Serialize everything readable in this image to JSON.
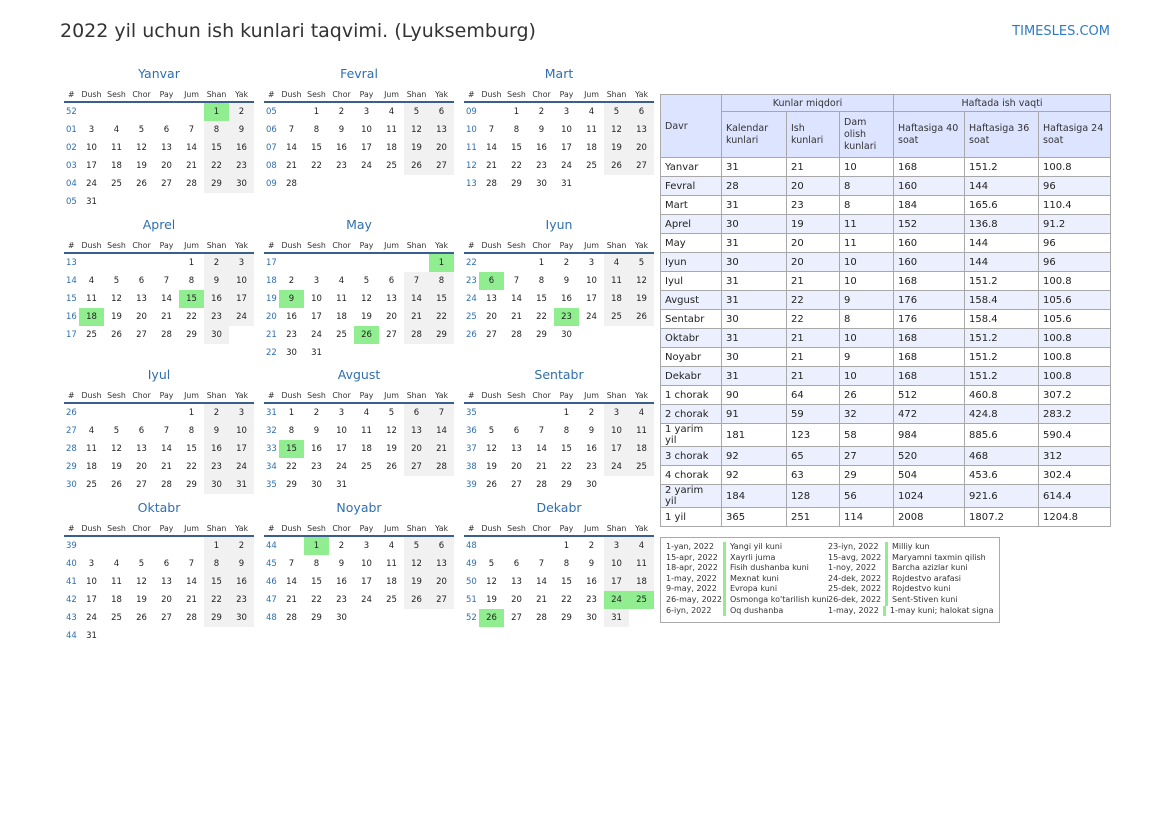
{
  "header": {
    "title": "2022 yil uchun ish kunlari taqvimi. (Lyuksemburg)",
    "site": "TIMESLES.COM"
  },
  "weekday_headers": [
    "#",
    "Dush",
    "Sesh",
    "Chor",
    "Pay",
    "Jum",
    "Shan",
    "Yak"
  ],
  "months": [
    {
      "name": "Yanvar",
      "rows": [
        [
          "52",
          "",
          "",
          "",
          "",
          "",
          "1",
          "2"
        ],
        [
          "01",
          "3",
          "4",
          "5",
          "6",
          "7",
          "8",
          "9"
        ],
        [
          "02",
          "10",
          "11",
          "12",
          "13",
          "14",
          "15",
          "16"
        ],
        [
          "03",
          "17",
          "18",
          "19",
          "20",
          "21",
          "22",
          "23"
        ],
        [
          "04",
          "24",
          "25",
          "26",
          "27",
          "28",
          "29",
          "30"
        ],
        [
          "05",
          "31",
          "",
          "",
          "",
          "",
          "",
          ""
        ]
      ],
      "holidays": [
        "1"
      ]
    },
    {
      "name": "Fevral",
      "rows": [
        [
          "05",
          "",
          "1",
          "2",
          "3",
          "4",
          "5",
          "6"
        ],
        [
          "06",
          "7",
          "8",
          "9",
          "10",
          "11",
          "12",
          "13"
        ],
        [
          "07",
          "14",
          "15",
          "16",
          "17",
          "18",
          "19",
          "20"
        ],
        [
          "08",
          "21",
          "22",
          "23",
          "24",
          "25",
          "26",
          "27"
        ],
        [
          "09",
          "28",
          "",
          "",
          "",
          "",
          "",
          ""
        ]
      ],
      "holidays": []
    },
    {
      "name": "Mart",
      "rows": [
        [
          "09",
          "",
          "1",
          "2",
          "3",
          "4",
          "5",
          "6"
        ],
        [
          "10",
          "7",
          "8",
          "9",
          "10",
          "11",
          "12",
          "13"
        ],
        [
          "11",
          "14",
          "15",
          "16",
          "17",
          "18",
          "19",
          "20"
        ],
        [
          "12",
          "21",
          "22",
          "23",
          "24",
          "25",
          "26",
          "27"
        ],
        [
          "13",
          "28",
          "29",
          "30",
          "31",
          "",
          "",
          ""
        ]
      ],
      "holidays": []
    },
    {
      "name": "Aprel",
      "rows": [
        [
          "13",
          "",
          "",
          "",
          "",
          "1",
          "2",
          "3"
        ],
        [
          "14",
          "4",
          "5",
          "6",
          "7",
          "8",
          "9",
          "10"
        ],
        [
          "15",
          "11",
          "12",
          "13",
          "14",
          "15",
          "16",
          "17"
        ],
        [
          "16",
          "18",
          "19",
          "20",
          "21",
          "22",
          "23",
          "24"
        ],
        [
          "17",
          "25",
          "26",
          "27",
          "28",
          "29",
          "30",
          ""
        ]
      ],
      "holidays": [
        "15",
        "18"
      ]
    },
    {
      "name": "May",
      "rows": [
        [
          "17",
          "",
          "",
          "",
          "",
          "",
          "",
          "1"
        ],
        [
          "18",
          "2",
          "3",
          "4",
          "5",
          "6",
          "7",
          "8"
        ],
        [
          "19",
          "9",
          "10",
          "11",
          "12",
          "13",
          "14",
          "15"
        ],
        [
          "20",
          "16",
          "17",
          "18",
          "19",
          "20",
          "21",
          "22"
        ],
        [
          "21",
          "23",
          "24",
          "25",
          "26",
          "27",
          "28",
          "29"
        ],
        [
          "22",
          "30",
          "31",
          "",
          "",
          "",
          "",
          ""
        ]
      ],
      "holidays": [
        "1",
        "9",
        "26"
      ]
    },
    {
      "name": "Iyun",
      "rows": [
        [
          "22",
          "",
          "",
          "1",
          "2",
          "3",
          "4",
          "5"
        ],
        [
          "23",
          "6",
          "7",
          "8",
          "9",
          "10",
          "11",
          "12"
        ],
        [
          "24",
          "13",
          "14",
          "15",
          "16",
          "17",
          "18",
          "19"
        ],
        [
          "25",
          "20",
          "21",
          "22",
          "23",
          "24",
          "25",
          "26"
        ],
        [
          "26",
          "27",
          "28",
          "29",
          "30",
          "",
          "",
          ""
        ]
      ],
      "holidays": [
        "6",
        "23"
      ]
    },
    {
      "name": "Iyul",
      "rows": [
        [
          "26",
          "",
          "",
          "",
          "",
          "1",
          "2",
          "3"
        ],
        [
          "27",
          "4",
          "5",
          "6",
          "7",
          "8",
          "9",
          "10"
        ],
        [
          "28",
          "11",
          "12",
          "13",
          "14",
          "15",
          "16",
          "17"
        ],
        [
          "29",
          "18",
          "19",
          "20",
          "21",
          "22",
          "23",
          "24"
        ],
        [
          "30",
          "25",
          "26",
          "27",
          "28",
          "29",
          "30",
          "31"
        ]
      ],
      "holidays": []
    },
    {
      "name": "Avgust",
      "rows": [
        [
          "31",
          "1",
          "2",
          "3",
          "4",
          "5",
          "6",
          "7"
        ],
        [
          "32",
          "8",
          "9",
          "10",
          "11",
          "12",
          "13",
          "14"
        ],
        [
          "33",
          "15",
          "16",
          "17",
          "18",
          "19",
          "20",
          "21"
        ],
        [
          "34",
          "22",
          "23",
          "24",
          "25",
          "26",
          "27",
          "28"
        ],
        [
          "35",
          "29",
          "30",
          "31",
          "",
          "",
          "",
          ""
        ]
      ],
      "holidays": [
        "15"
      ]
    },
    {
      "name": "Sentabr",
      "rows": [
        [
          "35",
          "",
          "",
          "",
          "1",
          "2",
          "3",
          "4"
        ],
        [
          "36",
          "5",
          "6",
          "7",
          "8",
          "9",
          "10",
          "11"
        ],
        [
          "37",
          "12",
          "13",
          "14",
          "15",
          "16",
          "17",
          "18"
        ],
        [
          "38",
          "19",
          "20",
          "21",
          "22",
          "23",
          "24",
          "25"
        ],
        [
          "39",
          "26",
          "27",
          "28",
          "29",
          "30",
          "",
          ""
        ]
      ],
      "holidays": []
    },
    {
      "name": "Oktabr",
      "rows": [
        [
          "39",
          "",
          "",
          "",
          "",
          "",
          "1",
          "2"
        ],
        [
          "40",
          "3",
          "4",
          "5",
          "6",
          "7",
          "8",
          "9"
        ],
        [
          "41",
          "10",
          "11",
          "12",
          "13",
          "14",
          "15",
          "16"
        ],
        [
          "42",
          "17",
          "18",
          "19",
          "20",
          "21",
          "22",
          "23"
        ],
        [
          "43",
          "24",
          "25",
          "26",
          "27",
          "28",
          "29",
          "30"
        ],
        [
          "44",
          "31",
          "",
          "",
          "",
          "",
          "",
          ""
        ]
      ],
      "holidays": []
    },
    {
      "name": "Noyabr",
      "rows": [
        [
          "44",
          "",
          "1",
          "2",
          "3",
          "4",
          "5",
          "6"
        ],
        [
          "45",
          "7",
          "8",
          "9",
          "10",
          "11",
          "12",
          "13"
        ],
        [
          "46",
          "14",
          "15",
          "16",
          "17",
          "18",
          "19",
          "20"
        ],
        [
          "47",
          "21",
          "22",
          "23",
          "24",
          "25",
          "26",
          "27"
        ],
        [
          "48",
          "28",
          "29",
          "30",
          "",
          "",
          "",
          ""
        ]
      ],
      "holidays": [
        "1"
      ]
    },
    {
      "name": "Dekabr",
      "rows": [
        [
          "48",
          "",
          "",
          "",
          "1",
          "2",
          "3",
          "4"
        ],
        [
          "49",
          "5",
          "6",
          "7",
          "8",
          "9",
          "10",
          "11"
        ],
        [
          "50",
          "12",
          "13",
          "14",
          "15",
          "16",
          "17",
          "18"
        ],
        [
          "51",
          "19",
          "20",
          "21",
          "22",
          "23",
          "24",
          "25"
        ],
        [
          "52",
          "26",
          "27",
          "28",
          "29",
          "30",
          "31",
          ""
        ]
      ],
      "holidays": [
        "24",
        "25",
        "26"
      ]
    }
  ],
  "stats": {
    "group_headers": {
      "period": "Davr",
      "days": "Kunlar miqdori",
      "hours": "Haftada ish vaqti"
    },
    "sub_headers": [
      "Kalendar kunlari",
      "Ish kunlari",
      "Dam olish kunlari",
      "Haftasiga 40 soat",
      "Haftasiga 36 soat",
      "Haftasiga 24 soat"
    ],
    "rows": [
      [
        "Yanvar",
        "31",
        "21",
        "10",
        "168",
        "151.2",
        "100.8"
      ],
      [
        "Fevral",
        "28",
        "20",
        "8",
        "160",
        "144",
        "96"
      ],
      [
        "Mart",
        "31",
        "23",
        "8",
        "184",
        "165.6",
        "110.4"
      ],
      [
        "Aprel",
        "30",
        "19",
        "11",
        "152",
        "136.8",
        "91.2"
      ],
      [
        "May",
        "31",
        "20",
        "11",
        "160",
        "144",
        "96"
      ],
      [
        "Iyun",
        "30",
        "20",
        "10",
        "160",
        "144",
        "96"
      ],
      [
        "Iyul",
        "31",
        "21",
        "10",
        "168",
        "151.2",
        "100.8"
      ],
      [
        "Avgust",
        "31",
        "22",
        "9",
        "176",
        "158.4",
        "105.6"
      ],
      [
        "Sentabr",
        "30",
        "22",
        "8",
        "176",
        "158.4",
        "105.6"
      ],
      [
        "Oktabr",
        "31",
        "21",
        "10",
        "168",
        "151.2",
        "100.8"
      ],
      [
        "Noyabr",
        "30",
        "21",
        "9",
        "168",
        "151.2",
        "100.8"
      ],
      [
        "Dekabr",
        "31",
        "21",
        "10",
        "168",
        "151.2",
        "100.8"
      ],
      [
        "1 chorak",
        "90",
        "64",
        "26",
        "512",
        "460.8",
        "307.2"
      ],
      [
        "2 chorak",
        "91",
        "59",
        "32",
        "472",
        "424.8",
        "283.2"
      ],
      [
        "1 yarim yil",
        "181",
        "123",
        "58",
        "984",
        "885.6",
        "590.4"
      ],
      [
        "3 chorak",
        "92",
        "65",
        "27",
        "520",
        "468",
        "312"
      ],
      [
        "4 chorak",
        "92",
        "63",
        "29",
        "504",
        "453.6",
        "302.4"
      ],
      [
        "2 yarim yil",
        "184",
        "128",
        "56",
        "1024",
        "921.6",
        "614.4"
      ],
      [
        "1 yil",
        "365",
        "251",
        "114",
        "2008",
        "1807.2",
        "1204.8"
      ]
    ]
  },
  "holidays_list": [
    [
      {
        "date": "1-yan, 2022",
        "name": "Yangi yil kuni"
      },
      {
        "date": "15-apr, 2022",
        "name": "Xayrli juma"
      },
      {
        "date": "18-apr, 2022",
        "name": "Fisih dushanba kuni"
      },
      {
        "date": "1-may, 2022",
        "name": "Mexnat kuni"
      },
      {
        "date": "9-may, 2022",
        "name": "Evropa kuni"
      },
      {
        "date": "26-may, 2022",
        "name": "Osmonga ko'tarilish kuni"
      },
      {
        "date": "6-iyn, 2022",
        "name": "Oq dushanba"
      }
    ],
    [
      {
        "date": "23-iyn, 2022",
        "name": "Milliy kun"
      },
      {
        "date": "15-avg, 2022",
        "name": "Maryamni taxmin qilish"
      },
      {
        "date": "1-noy, 2022",
        "name": "Barcha azizlar kuni"
      },
      {
        "date": "24-dek, 2022",
        "name": "Rojdestvo arafasi"
      },
      {
        "date": "25-dek, 2022",
        "name": "Rojdestvo kuni"
      },
      {
        "date": "26-dek, 2022",
        "name": "Sent-Stiven kuni"
      },
      {
        "date": "1-may, 2022",
        "name": "1-may kuni; halokat signali"
      }
    ]
  ]
}
